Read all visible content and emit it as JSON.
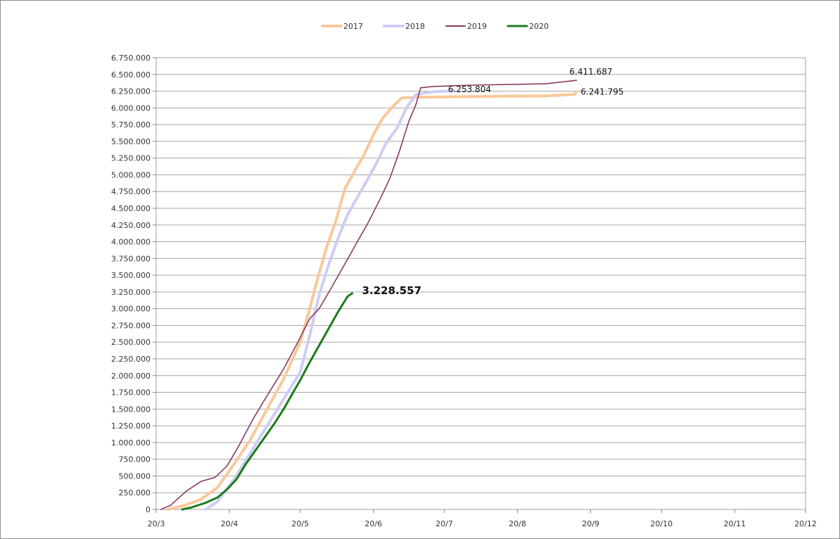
{
  "chart_data": {
    "type": "line",
    "title": "",
    "xlabel": "",
    "ylabel": "",
    "ylim": [
      0,
      6750000
    ],
    "yticks": [
      0,
      250000,
      500000,
      750000,
      1000000,
      1250000,
      1500000,
      1750000,
      2000000,
      2250000,
      2500000,
      2750000,
      3000000,
      3250000,
      3500000,
      3750000,
      4000000,
      4250000,
      4500000,
      4750000,
      5000000,
      5250000,
      5500000,
      5750000,
      6000000,
      6250000,
      6500000,
      6750000
    ],
    "ytick_labels": [
      "0",
      "250.000",
      "500.000",
      "750.000",
      "1.000.000",
      "1.250.000",
      "1.500.000",
      "1.750.000",
      "2.000.000",
      "2.250.000",
      "2.500.000",
      "2.750.000",
      "3.000.000",
      "3.250.000",
      "3.500.000",
      "3.750.000",
      "4.000.000",
      "4.250.000",
      "4.500.000",
      "4.750.000",
      "5.000.000",
      "5.250.000",
      "5.500.000",
      "5.750.000",
      "6.000.000",
      "6.250.000",
      "6.500.000",
      "6.750.000"
    ],
    "xlim": [
      "20/3",
      "20/12"
    ],
    "xtick_labels": [
      "20/3",
      "20/4",
      "20/5",
      "20/6",
      "20/7",
      "20/8",
      "20/9",
      "20/10",
      "20/11",
      "20/12"
    ],
    "grid": "horizontal",
    "legend_position": "top",
    "series": [
      {
        "name": "2017",
        "color": "#F9C899",
        "width": 4,
        "points": [
          [
            "25/3",
            0
          ],
          [
            "1/4",
            60000
          ],
          [
            "8/4",
            150000
          ],
          [
            "15/4",
            330000
          ],
          [
            "22/4",
            680000
          ],
          [
            "29/4",
            1050000
          ],
          [
            "6/5",
            1500000
          ],
          [
            "13/5",
            1950000
          ],
          [
            "20/5",
            2500000
          ],
          [
            "24/5",
            3000000
          ],
          [
            "27/5",
            3400000
          ],
          [
            "31/5",
            3900000
          ],
          [
            "4/6",
            4300000
          ],
          [
            "8/6",
            4800000
          ],
          [
            "12/6",
            5050000
          ],
          [
            "16/6",
            5300000
          ],
          [
            "20/6",
            5600000
          ],
          [
            "24/6",
            5850000
          ],
          [
            "29/6",
            6050000
          ],
          [
            "2/7",
            6150000
          ],
          [
            "10/7",
            6160000
          ],
          [
            "1/8",
            6170000
          ],
          [
            "1/9",
            6180000
          ],
          [
            "13/9",
            6200000
          ],
          [
            "14/9",
            6241795
          ]
        ]
      },
      {
        "name": "2018",
        "color": "#CDCDF4",
        "width": 4,
        "points": [
          [
            "10/4",
            0
          ],
          [
            "15/4",
            120000
          ],
          [
            "22/4",
            450000
          ],
          [
            "29/4",
            850000
          ],
          [
            "6/5",
            1250000
          ],
          [
            "13/5",
            1650000
          ],
          [
            "20/5",
            2050000
          ],
          [
            "24/5",
            2600000
          ],
          [
            "28/5",
            3200000
          ],
          [
            "1/6",
            3650000
          ],
          [
            "5/6",
            4050000
          ],
          [
            "9/6",
            4400000
          ],
          [
            "13/6",
            4650000
          ],
          [
            "17/6",
            4900000
          ],
          [
            "21/6",
            5150000
          ],
          [
            "25/6",
            5450000
          ],
          [
            "30/6",
            5700000
          ],
          [
            "4/7",
            6000000
          ],
          [
            "8/7",
            6200000
          ],
          [
            "15/7",
            6240000
          ],
          [
            "24/7",
            6253804
          ]
        ]
      },
      {
        "name": "2019",
        "color": "#8B3A62",
        "width": 1.6,
        "points": [
          [
            "22/3",
            0
          ],
          [
            "26/3",
            60000
          ],
          [
            "2/4",
            280000
          ],
          [
            "8/4",
            420000
          ],
          [
            "14/4",
            480000
          ],
          [
            "19/4",
            650000
          ],
          [
            "24/4",
            950000
          ],
          [
            "30/4",
            1350000
          ],
          [
            "6/5",
            1700000
          ],
          [
            "13/5",
            2100000
          ],
          [
            "19/5",
            2500000
          ],
          [
            "24/5",
            2850000
          ],
          [
            "28/5",
            3000000
          ],
          [
            "2/6",
            3300000
          ],
          [
            "6/6",
            3550000
          ],
          [
            "10/6",
            3800000
          ],
          [
            "14/6",
            4050000
          ],
          [
            "18/6",
            4300000
          ],
          [
            "23/6",
            4650000
          ],
          [
            "27/6",
            4950000
          ],
          [
            "1/7",
            5350000
          ],
          [
            "5/7",
            5800000
          ],
          [
            "8/7",
            6050000
          ],
          [
            "10/7",
            6300000
          ],
          [
            "15/7",
            6320000
          ],
          [
            "1/8",
            6340000
          ],
          [
            "1/9",
            6360000
          ],
          [
            "14/9",
            6411687
          ]
        ]
      },
      {
        "name": "2020",
        "color": "#1C7A1C",
        "width": 3,
        "points": [
          [
            "31/3",
            0
          ],
          [
            "4/4",
            30000
          ],
          [
            "10/4",
            100000
          ],
          [
            "15/4",
            180000
          ],
          [
            "19/4",
            300000
          ],
          [
            "23/4",
            450000
          ],
          [
            "27/4",
            680000
          ],
          [
            "1/5",
            880000
          ],
          [
            "5/5",
            1080000
          ],
          [
            "9/5",
            1280000
          ],
          [
            "13/5",
            1500000
          ],
          [
            "17/5",
            1750000
          ],
          [
            "20/5",
            1930000
          ],
          [
            "24/5",
            2200000
          ],
          [
            "28/5",
            2450000
          ],
          [
            "1/6",
            2700000
          ],
          [
            "5/6",
            2950000
          ],
          [
            "9/6",
            3180000
          ],
          [
            "11/6",
            3228557
          ]
        ]
      }
    ],
    "annotations": [
      {
        "text": "6.411.687",
        "x": "14/9",
        "y": 6411687,
        "series": "2019"
      },
      {
        "text": "6.253.804",
        "x": "24/7",
        "y": 6253804,
        "series": "2018"
      },
      {
        "text": "6.241.795",
        "x": "14/9",
        "y": 6241795,
        "series": "2017"
      },
      {
        "text": "3.228.557",
        "x": "11/6",
        "y": 3228557,
        "series": "2020",
        "bold": true
      }
    ]
  }
}
